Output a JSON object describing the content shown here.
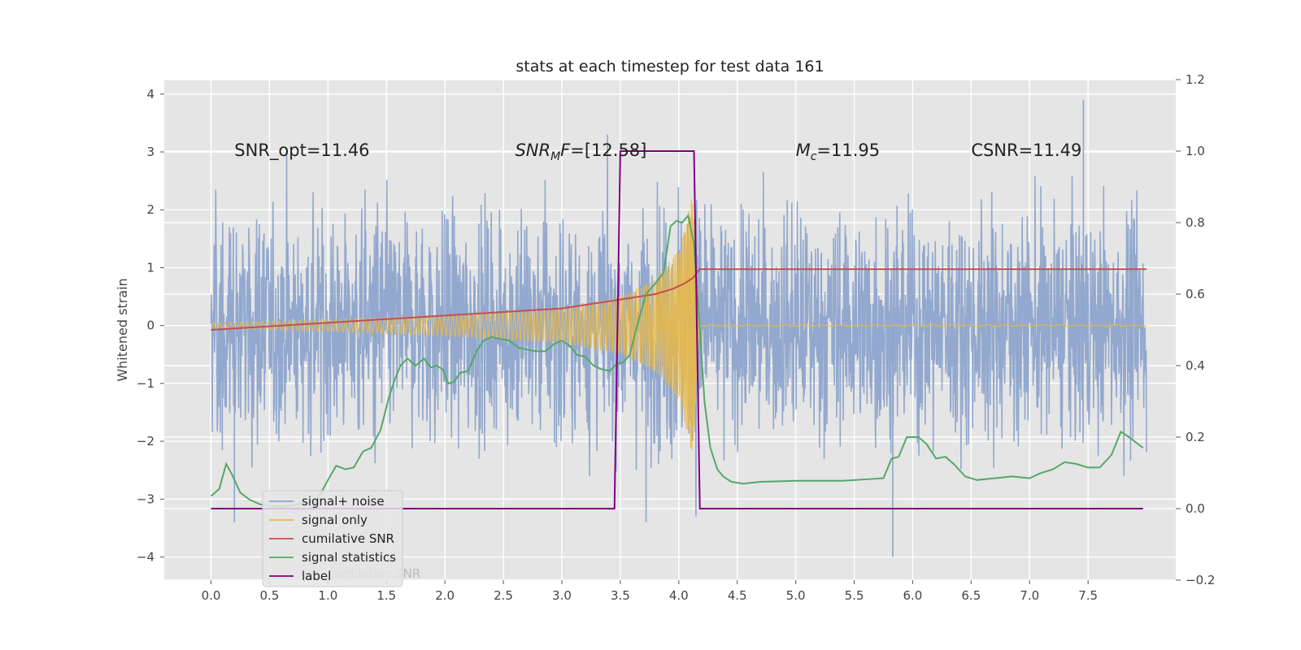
{
  "chart_data": {
    "type": "line",
    "title": "stats at each timestep for test data 161",
    "ylabel": "Whitened strain",
    "xlabel": "",
    "xlim": [
      -0.4,
      8.25
    ],
    "ylim": [
      -4.4,
      4.25
    ],
    "y2lim": [
      -0.2,
      1.2
    ],
    "xticks": [
      "0.0",
      "0.5",
      "1.0",
      "1.5",
      "2.0",
      "2.5",
      "3.0",
      "3.5",
      "4.0",
      "4.5",
      "5.0",
      "5.5",
      "6.0",
      "6.5",
      "7.0",
      "7.5"
    ],
    "yticks": [
      "4",
      "3",
      "2",
      "1",
      "0",
      "−1",
      "−2",
      "−3",
      "−4"
    ],
    "y2ticks": [
      "1.2",
      "1.0",
      "0.8",
      "0.6",
      "0.4",
      "0.2",
      "0.0",
      "−0.2"
    ],
    "grid": true,
    "legend_position": "lower-left",
    "annotations": [
      {
        "text": "SNR_opt=11.46",
        "x": 0.2,
        "y": 3.0
      },
      {
        "text": "SNR",
        "sub": "M",
        "rest": "F=[12.58]",
        "x": 2.6,
        "y": 3.0
      },
      {
        "text": "M",
        "sub": "c",
        "rest": "=11.95",
        "x": 5.0,
        "y": 3.0
      },
      {
        "text": "CSNR=11.49",
        "x": 6.5,
        "y": 3.0
      }
    ],
    "colors": {
      "noise": "#8da4cc",
      "signal": "#e8b84a",
      "cumulative": "#c44e52",
      "stats": "#55a868",
      "label": "#800080"
    },
    "series": [
      {
        "name": "signal+ noise",
        "axis": "left",
        "x_range": [
          0,
          8
        ],
        "amplitude_envelope": [
          [
            0,
            2.2
          ],
          [
            3.8,
            2.2
          ],
          [
            4.15,
            3.3
          ],
          [
            4.2,
            2.2
          ],
          [
            8,
            2.2
          ]
        ],
        "note_peak_values": [
          [
            5.83,
            -4.0
          ],
          [
            7.46,
            3.9
          ],
          [
            3.72,
            -3.4
          ],
          [
            0.2,
            -3.4
          ]
        ]
      },
      {
        "name": "signal only",
        "axis": "left",
        "x_range": [
          0,
          8
        ],
        "chirp_end": 4.18,
        "envelope": [
          [
            0,
            0.05
          ],
          [
            1,
            0.1
          ],
          [
            2,
            0.18
          ],
          [
            3,
            0.3
          ],
          [
            3.5,
            0.5
          ],
          [
            3.8,
            0.8
          ],
          [
            4.0,
            1.3
          ],
          [
            4.12,
            2.3
          ],
          [
            4.18,
            0.1
          ],
          [
            4.2,
            0.0
          ],
          [
            8,
            0.0
          ]
        ]
      },
      {
        "name": "cumilative SNR",
        "axis": "right",
        "points": [
          [
            0,
            0.5
          ],
          [
            0.5,
            0.51
          ],
          [
            1,
            0.52
          ],
          [
            1.5,
            0.53
          ],
          [
            2,
            0.54
          ],
          [
            2.5,
            0.55
          ],
          [
            3,
            0.56
          ],
          [
            3.3,
            0.575
          ],
          [
            3.6,
            0.59
          ],
          [
            3.8,
            0.6
          ],
          [
            3.95,
            0.615
          ],
          [
            4.05,
            0.63
          ],
          [
            4.12,
            0.645
          ],
          [
            4.18,
            0.67
          ],
          [
            4.19,
            0.67
          ],
          [
            8,
            0.67
          ]
        ]
      },
      {
        "name": "signal statistics",
        "axis": "right",
        "points": [
          [
            0,
            0.035
          ],
          [
            0.07,
            0.055
          ],
          [
            0.13,
            0.125
          ],
          [
            0.18,
            0.095
          ],
          [
            0.25,
            0.045
          ],
          [
            0.33,
            0.025
          ],
          [
            0.42,
            0.012
          ],
          [
            0.5,
            0.008
          ],
          [
            0.6,
            0.005
          ],
          [
            0.7,
            0.01
          ],
          [
            0.8,
            0.015
          ],
          [
            0.9,
            0.02
          ],
          [
            1.0,
            0.08
          ],
          [
            1.07,
            0.12
          ],
          [
            1.15,
            0.11
          ],
          [
            1.22,
            0.115
          ],
          [
            1.3,
            0.16
          ],
          [
            1.37,
            0.17
          ],
          [
            1.45,
            0.22
          ],
          [
            1.52,
            0.31
          ],
          [
            1.57,
            0.36
          ],
          [
            1.62,
            0.4
          ],
          [
            1.68,
            0.42
          ],
          [
            1.75,
            0.4
          ],
          [
            1.82,
            0.42
          ],
          [
            1.88,
            0.395
          ],
          [
            1.93,
            0.4
          ],
          [
            1.98,
            0.39
          ],
          [
            2.03,
            0.35
          ],
          [
            2.08,
            0.355
          ],
          [
            2.13,
            0.38
          ],
          [
            2.2,
            0.385
          ],
          [
            2.27,
            0.44
          ],
          [
            2.33,
            0.47
          ],
          [
            2.4,
            0.48
          ],
          [
            2.47,
            0.475
          ],
          [
            2.55,
            0.47
          ],
          [
            2.63,
            0.45
          ],
          [
            2.7,
            0.445
          ],
          [
            2.78,
            0.44
          ],
          [
            2.86,
            0.44
          ],
          [
            2.93,
            0.46
          ],
          [
            3.0,
            0.47
          ],
          [
            3.07,
            0.455
          ],
          [
            3.13,
            0.43
          ],
          [
            3.2,
            0.425
          ],
          [
            3.27,
            0.4
          ],
          [
            3.34,
            0.39
          ],
          [
            3.41,
            0.385
          ],
          [
            3.47,
            0.405
          ],
          [
            3.53,
            0.41
          ],
          [
            3.58,
            0.43
          ],
          [
            3.65,
            0.52
          ],
          [
            3.72,
            0.6
          ],
          [
            3.8,
            0.63
          ],
          [
            3.87,
            0.66
          ],
          [
            3.93,
            0.79
          ],
          [
            3.98,
            0.805
          ],
          [
            4.03,
            0.8
          ],
          [
            4.08,
            0.82
          ],
          [
            4.13,
            0.74
          ],
          [
            4.18,
            0.5
          ],
          [
            4.22,
            0.3
          ],
          [
            4.27,
            0.17
          ],
          [
            4.33,
            0.11
          ],
          [
            4.38,
            0.09
          ],
          [
            4.45,
            0.075
          ],
          [
            4.55,
            0.07
          ],
          [
            4.7,
            0.075
          ],
          [
            5.0,
            0.078
          ],
          [
            5.4,
            0.078
          ],
          [
            5.75,
            0.085
          ],
          [
            5.82,
            0.14
          ],
          [
            5.88,
            0.145
          ],
          [
            5.95,
            0.2
          ],
          [
            6.05,
            0.2
          ],
          [
            6.12,
            0.18
          ],
          [
            6.2,
            0.14
          ],
          [
            6.28,
            0.145
          ],
          [
            6.35,
            0.125
          ],
          [
            6.45,
            0.09
          ],
          [
            6.55,
            0.08
          ],
          [
            6.7,
            0.085
          ],
          [
            6.85,
            0.09
          ],
          [
            7.0,
            0.085
          ],
          [
            7.1,
            0.1
          ],
          [
            7.2,
            0.11
          ],
          [
            7.3,
            0.13
          ],
          [
            7.4,
            0.125
          ],
          [
            7.5,
            0.115
          ],
          [
            7.6,
            0.115
          ],
          [
            7.7,
            0.15
          ],
          [
            7.78,
            0.215
          ],
          [
            7.85,
            0.2
          ],
          [
            7.93,
            0.18
          ],
          [
            7.97,
            0.17
          ]
        ]
      },
      {
        "name": "label",
        "axis": "right",
        "points": [
          [
            0,
            0
          ],
          [
            3.45,
            0
          ],
          [
            3.5,
            1.0
          ],
          [
            4.13,
            1.0
          ],
          [
            4.18,
            0
          ],
          [
            7.97,
            0
          ]
        ]
      }
    ],
    "legend_overlap_text": "cumilative SNR"
  }
}
